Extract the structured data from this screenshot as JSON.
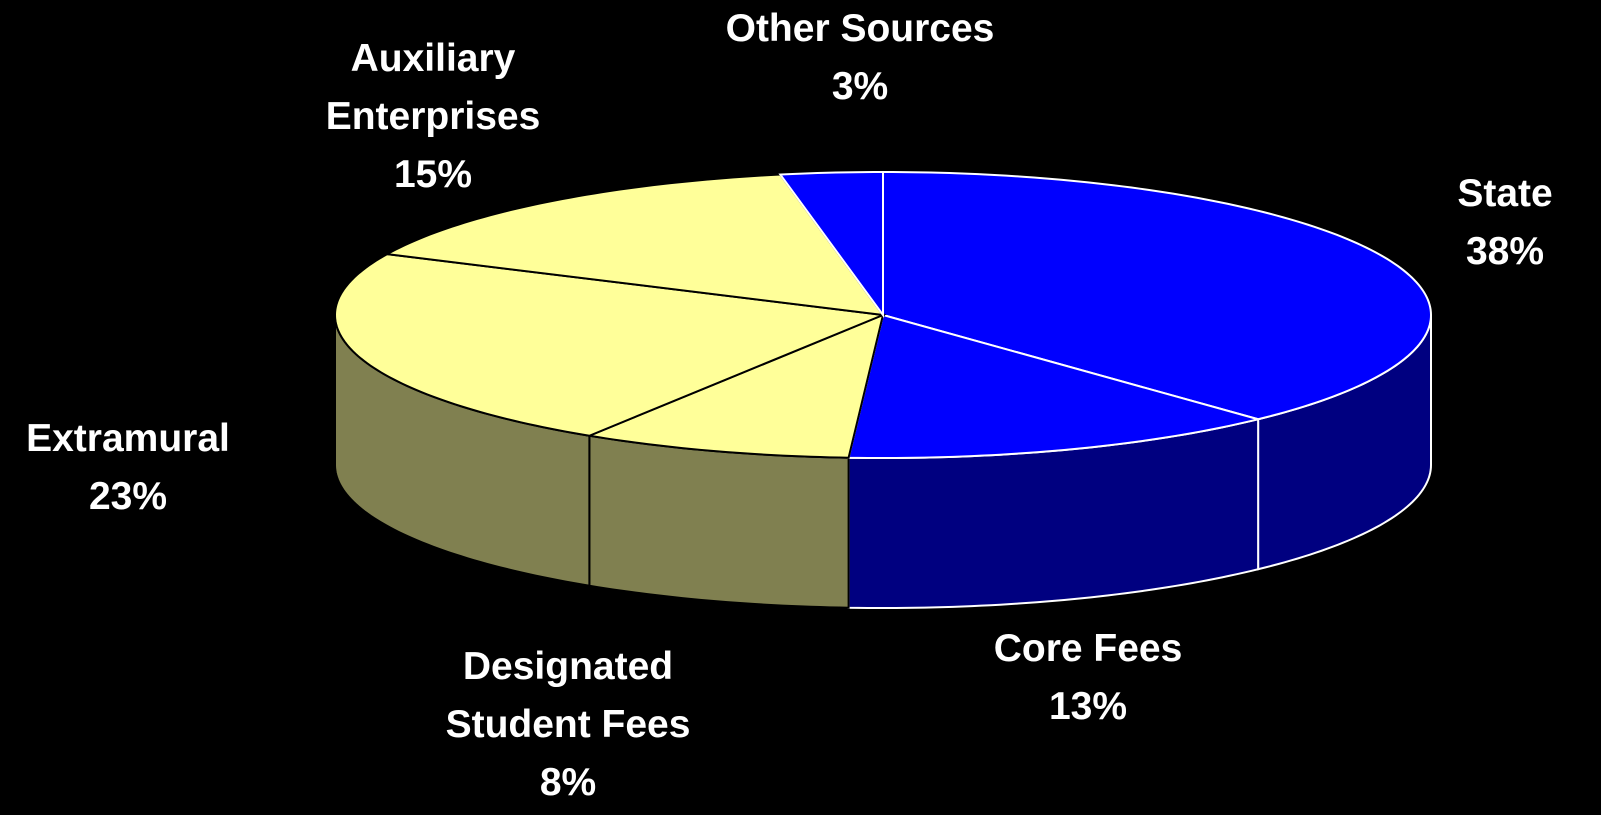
{
  "chart_data": {
    "type": "pie3d",
    "categories": [
      "State",
      "Core Fees",
      "Designated Student Fees",
      "Extramural",
      "Auxiliary Enterprises",
      "Other Sources"
    ],
    "values": [
      38,
      13,
      8,
      23,
      15,
      3
    ],
    "value_labels": [
      "38%",
      "13%",
      "8%",
      "23%",
      "15%",
      "3%"
    ],
    "colors": [
      "#0000ff",
      "#0000ff",
      "#ffff99",
      "#ffff99",
      "#ffff99",
      "#0000ff"
    ],
    "side_colors": [
      "#000080",
      "#000080",
      "#808050",
      "#808050",
      "#808050",
      "#000080"
    ],
    "edge_colors": [
      "#ffffff",
      "#ffffff",
      "#000000",
      "#000000",
      "#000000",
      "#ffffff"
    ]
  }
}
